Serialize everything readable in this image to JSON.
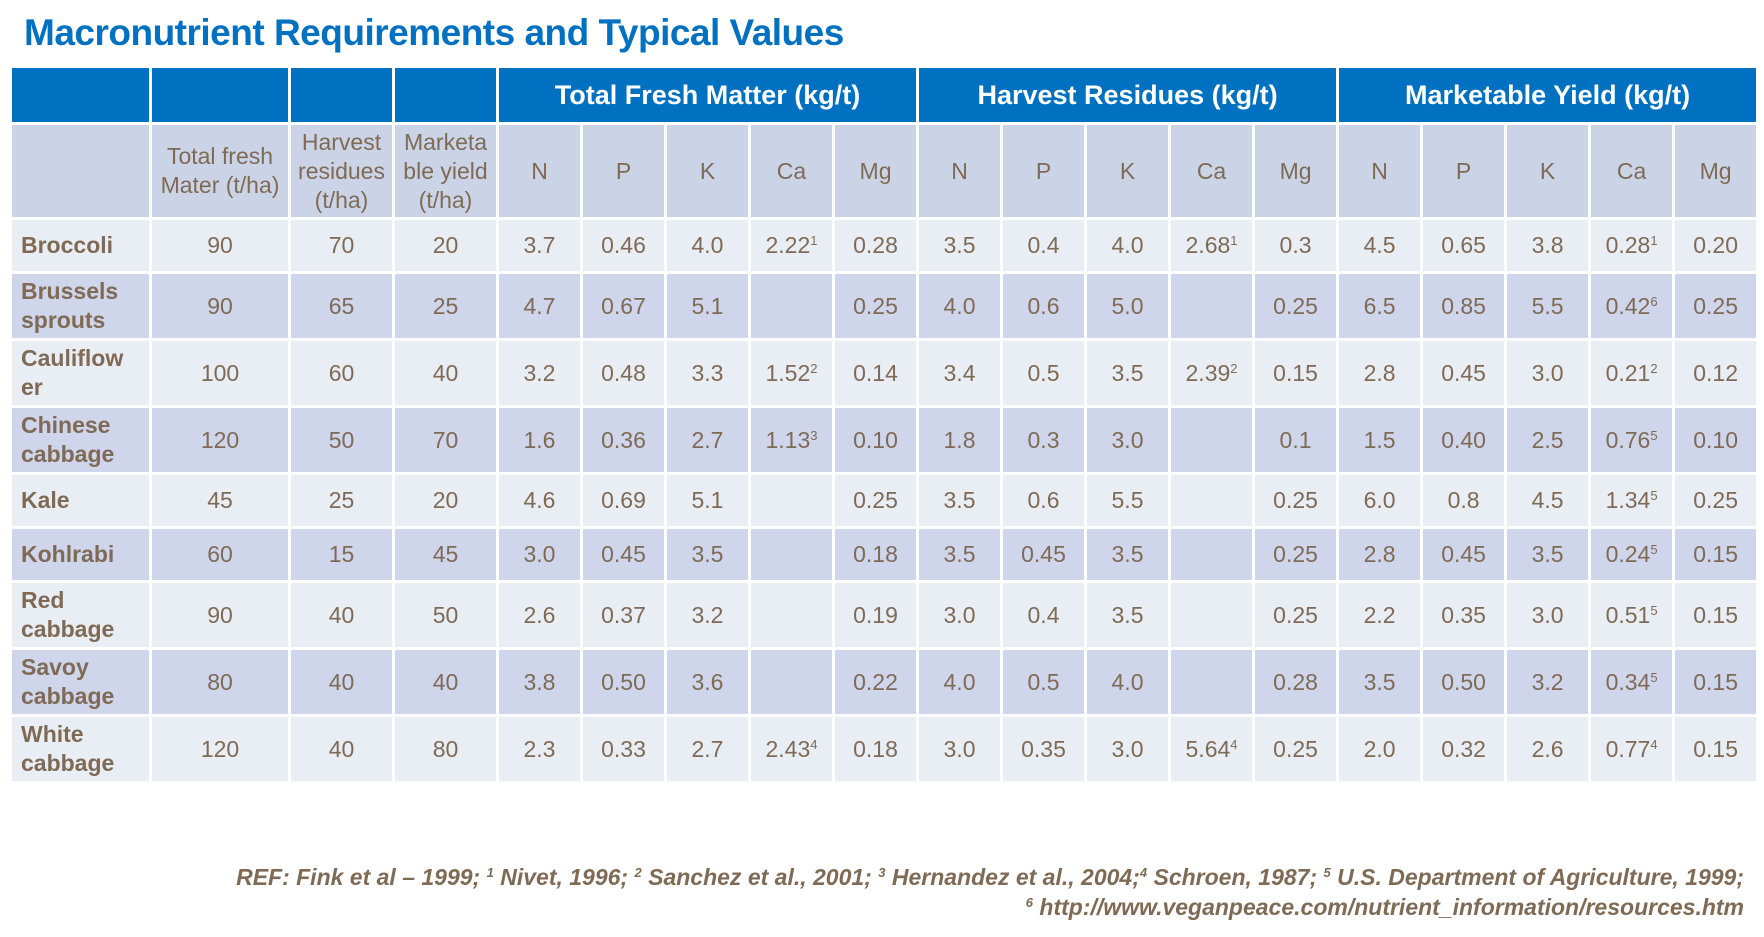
{
  "title": "Macronutrient Requirements and Typical Values",
  "colors": {
    "header": "#0070C0",
    "subheader": "#CAD4E6",
    "row_light": "#E9EDF4",
    "row_dark": "#CFD5EA",
    "text": "#7F6A55"
  },
  "group_headers": [
    "Total Fresh Matter (kg/t)",
    "Harvest Residues (kg/t)",
    "Marketable Yield (kg/t)"
  ],
  "sub_headers": [
    "",
    "Total fresh Mater (t/ha)",
    "Harvest residues (t/ha)",
    "Marketa ble yield (t/ha)",
    "N",
    "P",
    "K",
    "Ca",
    "Mg",
    "N",
    "P",
    "K",
    "Ca",
    "Mg",
    "N",
    "P",
    "K",
    "Ca",
    "Mg"
  ],
  "rows": [
    {
      "name": "Broccoli",
      "cells": [
        "90",
        "70",
        "20",
        "3.7",
        "0.46",
        "4.0",
        {
          "v": "2.22",
          "sup": "1"
        },
        "0.28",
        "3.5",
        "0.4",
        "4.0",
        {
          "v": "2.68",
          "sup": "1"
        },
        "0.3",
        "4.5",
        "0.65",
        "3.8",
        {
          "v": "0.28",
          "sup": "1"
        },
        "0.20"
      ]
    },
    {
      "name": "Brussels sprouts",
      "cells": [
        "90",
        "65",
        "25",
        "4.7",
        "0.67",
        "5.1",
        "",
        "0.25",
        "4.0",
        "0.6",
        "5.0",
        "",
        "0.25",
        "6.5",
        "0.85",
        "5.5",
        {
          "v": "0.42",
          "sup": "6"
        },
        "0.25"
      ]
    },
    {
      "name": "Cauliflow er",
      "cells": [
        "100",
        "60",
        "40",
        "3.2",
        "0.48",
        "3.3",
        {
          "v": "1.52",
          "sup": "2"
        },
        "0.14",
        "3.4",
        "0.5",
        "3.5",
        {
          "v": "2.39",
          "sup": "2"
        },
        "0.15",
        "2.8",
        "0.45",
        "3.0",
        {
          "v": "0.21",
          "sup": "2"
        },
        "0.12"
      ]
    },
    {
      "name": "Chinese cabbage",
      "cells": [
        "120",
        "50",
        "70",
        "1.6",
        "0.36",
        "2.7",
        {
          "v": "1.13",
          "sup": "3"
        },
        "0.10",
        "1.8",
        "0.3",
        "3.0",
        "",
        "0.1",
        "1.5",
        "0.40",
        "2.5",
        {
          "v": "0.76",
          "sup": "5"
        },
        "0.10"
      ]
    },
    {
      "name": "Kale",
      "cells": [
        "45",
        "25",
        "20",
        "4.6",
        "0.69",
        "5.1",
        "",
        "0.25",
        "3.5",
        "0.6",
        "5.5",
        "",
        "0.25",
        "6.0",
        "0.8",
        "4.5",
        {
          "v": "1.34",
          "sup": "5"
        },
        "0.25"
      ]
    },
    {
      "name": "Kohlrabi",
      "cells": [
        "60",
        "15",
        "45",
        "3.0",
        "0.45",
        "3.5",
        "",
        "0.18",
        "3.5",
        "0.45",
        "3.5",
        "",
        "0.25",
        "2.8",
        "0.45",
        "3.5",
        {
          "v": "0.24",
          "sup": "5"
        },
        "0.15"
      ]
    },
    {
      "name": "Red cabbage",
      "cells": [
        "90",
        "40",
        "50",
        "2.6",
        "0.37",
        "3.2",
        "",
        "0.19",
        "3.0",
        "0.4",
        "3.5",
        "",
        "0.25",
        "2.2",
        "0.35",
        "3.0",
        {
          "v": "0.51",
          "sup": "5"
        },
        "0.15"
      ]
    },
    {
      "name": "Savoy cabbage",
      "cells": [
        "80",
        "40",
        "40",
        "3.8",
        "0.50",
        "3.6",
        "",
        "0.22",
        "4.0",
        "0.5",
        "4.0",
        "",
        "0.28",
        "3.5",
        "0.50",
        "3.2",
        {
          "v": "0.34",
          "sup": "5"
        },
        "0.15"
      ]
    },
    {
      "name": "White cabbage",
      "cells": [
        "120",
        "40",
        "80",
        "2.3",
        "0.33",
        "2.7",
        {
          "v": "2.43",
          "sup": "4"
        },
        "0.18",
        "3.0",
        "0.35",
        "3.0",
        {
          "v": "5.64",
          "sup": "4"
        },
        "0.25",
        "2.0",
        "0.32",
        "2.6",
        {
          "v": "0.77",
          "sup": "4"
        },
        "0.15"
      ]
    }
  ],
  "reference": {
    "line1": [
      {
        "t": "REF: Fink et al – 1999; "
      },
      {
        "s": "1"
      },
      {
        "t": " Nivet, 1996; "
      },
      {
        "s": "2"
      },
      {
        "t": " Sanchez et al., 2001; "
      },
      {
        "s": "3"
      },
      {
        "t": " Hernandez et al., 2004;"
      },
      {
        "s": "4"
      },
      {
        "t": " Schroen, 1987; "
      },
      {
        "s": "5"
      },
      {
        "t": " U.S. Department of Agriculture, 1999;"
      }
    ],
    "line2": [
      {
        "s": "6"
      },
      {
        "t": " http://www.veganpeace.com/nutrient_information/resources.htm"
      }
    ]
  }
}
